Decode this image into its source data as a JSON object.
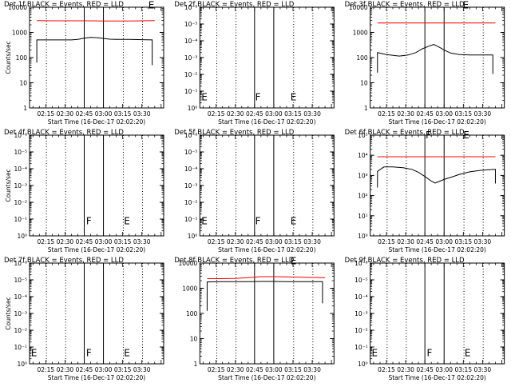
{
  "layout": {
    "columns": 3,
    "rows": 3
  },
  "colors": {
    "events": "#000000",
    "lld": "#ff0000",
    "background": "#ffffff",
    "axes": "#000000"
  },
  "shared": {
    "xlabel": "Start Time (16-Dec-17 02:02:20)",
    "time_ticks": [
      "02:15",
      "02:30",
      "02:45",
      "03:00",
      "03:15",
      "03:30"
    ],
    "x_domain_minutes": [
      122.33,
      227.0
    ],
    "solid_lines_minutes": [
      165.0,
      180.0
    ],
    "dotted_lines_minutes": [
      135.5,
      150.5,
      195.5,
      210.5
    ]
  },
  "chart_data": [
    {
      "type": "line",
      "title": "Det 1f BLACK = Events, RED = LLD",
      "ylabel": "Counts/sec",
      "ytick_labels": [
        "1",
        "10",
        "100",
        "1000",
        "10000"
      ],
      "ylog": [
        0,
        4
      ],
      "letters": [
        {
          "text": "E",
          "x": 215.0,
          "y": 3.95
        }
      ],
      "series": [
        {
          "name": "LLD",
          "color": "#ff0000",
          "x": [
            128,
            140,
            150,
            160,
            170,
            180,
            190,
            200,
            210,
            220
          ],
          "y": [
            3.47,
            3.46,
            3.46,
            3.46,
            3.46,
            3.45,
            3.45,
            3.45,
            3.46,
            3.47
          ]
        },
        {
          "name": "Events",
          "color": "#000000",
          "x": [
            128,
            128,
            135,
            145,
            155,
            160,
            165,
            170,
            175,
            180,
            185,
            190,
            200,
            210,
            218,
            218
          ],
          "y": [
            1.8,
            2.7,
            2.7,
            2.7,
            2.7,
            2.72,
            2.77,
            2.8,
            2.79,
            2.76,
            2.73,
            2.72,
            2.72,
            2.71,
            2.7,
            1.7
          ]
        }
      ]
    },
    {
      "type": "line",
      "title": "Det 2f BLACK = Events, RED = LLD",
      "ylabel": "",
      "ytick_labels": [
        "10⁰",
        "10⁻¹",
        "10⁻²",
        "10⁻³",
        "10⁻⁴",
        "10⁻⁵",
        "10⁻⁶"
      ],
      "ylog": [
        0,
        6
      ],
      "letters": [
        {
          "text": "E",
          "x": 123.5,
          "y": 0.45
        },
        {
          "text": "F",
          "x": 165.5,
          "y": 0.45
        },
        {
          "text": "E",
          "x": 193.0,
          "y": 0.45
        }
      ],
      "series": []
    },
    {
      "type": "line",
      "title": "Det 3f BLACK = Events, RED = LLD",
      "ylabel": "",
      "ytick_labels": [
        "1",
        "10",
        "100",
        "1000",
        "10000"
      ],
      "ylog": [
        0,
        4
      ],
      "letters": [
        {
          "text": "E",
          "x": 194.5,
          "y": 3.95
        }
      ],
      "series": [
        {
          "name": "LLD",
          "color": "#ff0000",
          "x": [
            128,
            140,
            150,
            160,
            170,
            180,
            190,
            200,
            210,
            220
          ],
          "y": [
            3.37,
            3.37,
            3.37,
            3.37,
            3.37,
            3.37,
            3.37,
            3.37,
            3.37,
            3.37
          ]
        },
        {
          "name": "Events",
          "color": "#000000",
          "x": [
            128,
            128,
            135,
            145,
            152,
            158,
            163,
            168,
            172,
            176,
            180,
            185,
            192,
            200,
            210,
            218,
            218
          ],
          "y": [
            1.4,
            2.2,
            2.12,
            2.06,
            2.1,
            2.2,
            2.35,
            2.45,
            2.52,
            2.42,
            2.3,
            2.18,
            2.12,
            2.1,
            2.1,
            2.1,
            1.35
          ]
        }
      ]
    },
    {
      "type": "line",
      "title": "Det 4f BLACK = Events, RED = LLD",
      "ylabel": "Counts/sec",
      "ytick_labels": [
        "10⁰",
        "10⁻¹",
        "10⁻²",
        "10⁻³",
        "10⁻⁴",
        "10⁻⁵",
        "10⁻⁶"
      ],
      "ylog": [
        0,
        6
      ],
      "letters": [
        {
          "text": "F",
          "x": 166.5,
          "y": 0.7
        },
        {
          "text": "E",
          "x": 196.0,
          "y": 0.7
        }
      ],
      "series": []
    },
    {
      "type": "line",
      "title": "Det 5f BLACK = Events, RED = LLD",
      "ylabel": "",
      "ytick_labels": [
        "10⁰",
        "10⁻¹",
        "10⁻²",
        "10⁻³",
        "10⁻⁴",
        "10⁻⁵",
        "10⁻⁶"
      ],
      "ylog": [
        0,
        6
      ],
      "letters": [
        {
          "text": "E",
          "x": 123.5,
          "y": 0.7
        },
        {
          "text": "F",
          "x": 165.5,
          "y": 0.7
        },
        {
          "text": "E",
          "x": 193.0,
          "y": 0.7
        }
      ],
      "series": []
    },
    {
      "type": "line",
      "title": "Det 6f BLACK = Events, RED = LLD",
      "ylabel": "",
      "ytick_labels": [
        "10⁰",
        "10¹",
        "10²",
        "10³",
        "10⁴",
        "10⁵"
      ],
      "ylog": [
        0,
        5
      ],
      "letters": [
        {
          "text": "F",
          "x": 165.5,
          "y": 4.85
        },
        {
          "text": "E",
          "x": 195.0,
          "y": 4.85
        }
      ],
      "series": [
        {
          "name": "LLD",
          "color": "#ff0000",
          "x": [
            128,
            140,
            150,
            160,
            170,
            180,
            190,
            200,
            210,
            220
          ],
          "y": [
            3.93,
            3.93,
            3.93,
            3.93,
            3.93,
            3.93,
            3.93,
            3.93,
            3.93,
            3.93
          ]
        },
        {
          "name": "Events",
          "color": "#000000",
          "x": [
            128,
            128,
            133,
            140,
            148,
            155,
            160,
            165,
            170,
            173,
            176,
            180,
            186,
            192,
            200,
            208,
            215,
            220,
            220
          ],
          "y": [
            2.4,
            3.2,
            3.42,
            3.42,
            3.38,
            3.3,
            3.15,
            2.95,
            2.72,
            2.62,
            2.7,
            2.8,
            2.92,
            3.05,
            3.18,
            3.25,
            3.28,
            3.3,
            2.6
          ]
        }
      ]
    },
    {
      "type": "line",
      "title": "Det 7f BLACK = Events, RED = LLD",
      "ylabel": "Counts/sec",
      "ytick_labels": [
        "10⁰",
        "10⁻¹",
        "10⁻²",
        "10⁻³",
        "10⁻⁴",
        "10⁻⁵",
        "10⁻⁶"
      ],
      "ylog": [
        0,
        6
      ],
      "letters": [
        {
          "text": "E",
          "x": 123.5,
          "y": 0.45
        },
        {
          "text": "F",
          "x": 166.5,
          "y": 0.45
        },
        {
          "text": "E",
          "x": 196.0,
          "y": 0.45
        }
      ],
      "series": []
    },
    {
      "type": "line",
      "title": "Det 8f BLACK = Events, RED = LLD",
      "ylabel": "",
      "ytick_labels": [
        "1",
        "10",
        "100",
        "1000",
        "10000"
      ],
      "ylog": [
        0,
        4
      ],
      "letters": [
        {
          "text": "E",
          "x": 193.0,
          "y": 3.95
        }
      ],
      "series": [
        {
          "name": "LLD",
          "color": "#ff0000",
          "x": [
            128,
            140,
            150,
            160,
            170,
            180,
            190,
            200,
            210,
            220
          ],
          "y": [
            3.38,
            3.38,
            3.39,
            3.42,
            3.46,
            3.46,
            3.45,
            3.44,
            3.43,
            3.42
          ]
        },
        {
          "name": "Events",
          "color": "#000000",
          "x": [
            128,
            128,
            140,
            150,
            160,
            170,
            180,
            190,
            200,
            210,
            218,
            218
          ],
          "y": [
            2.1,
            3.25,
            3.26,
            3.26,
            3.26,
            3.27,
            3.27,
            3.26,
            3.26,
            3.26,
            3.26,
            2.4
          ]
        }
      ]
    },
    {
      "type": "line",
      "title": "Det 9f BLACK = Events, RED = LLD",
      "ylabel": "",
      "ytick_labels": [
        "10⁰",
        "10⁻¹",
        "10⁻²",
        "10⁻³",
        "10⁻⁴",
        "10⁻⁵",
        "10⁻⁶"
      ],
      "ylog": [
        0,
        6
      ],
      "letters": [
        {
          "text": "E",
          "x": 123.5,
          "y": 0.45
        },
        {
          "text": "F",
          "x": 166.5,
          "y": 0.45
        },
        {
          "text": "E",
          "x": 196.0,
          "y": 0.45
        }
      ],
      "series": []
    }
  ]
}
